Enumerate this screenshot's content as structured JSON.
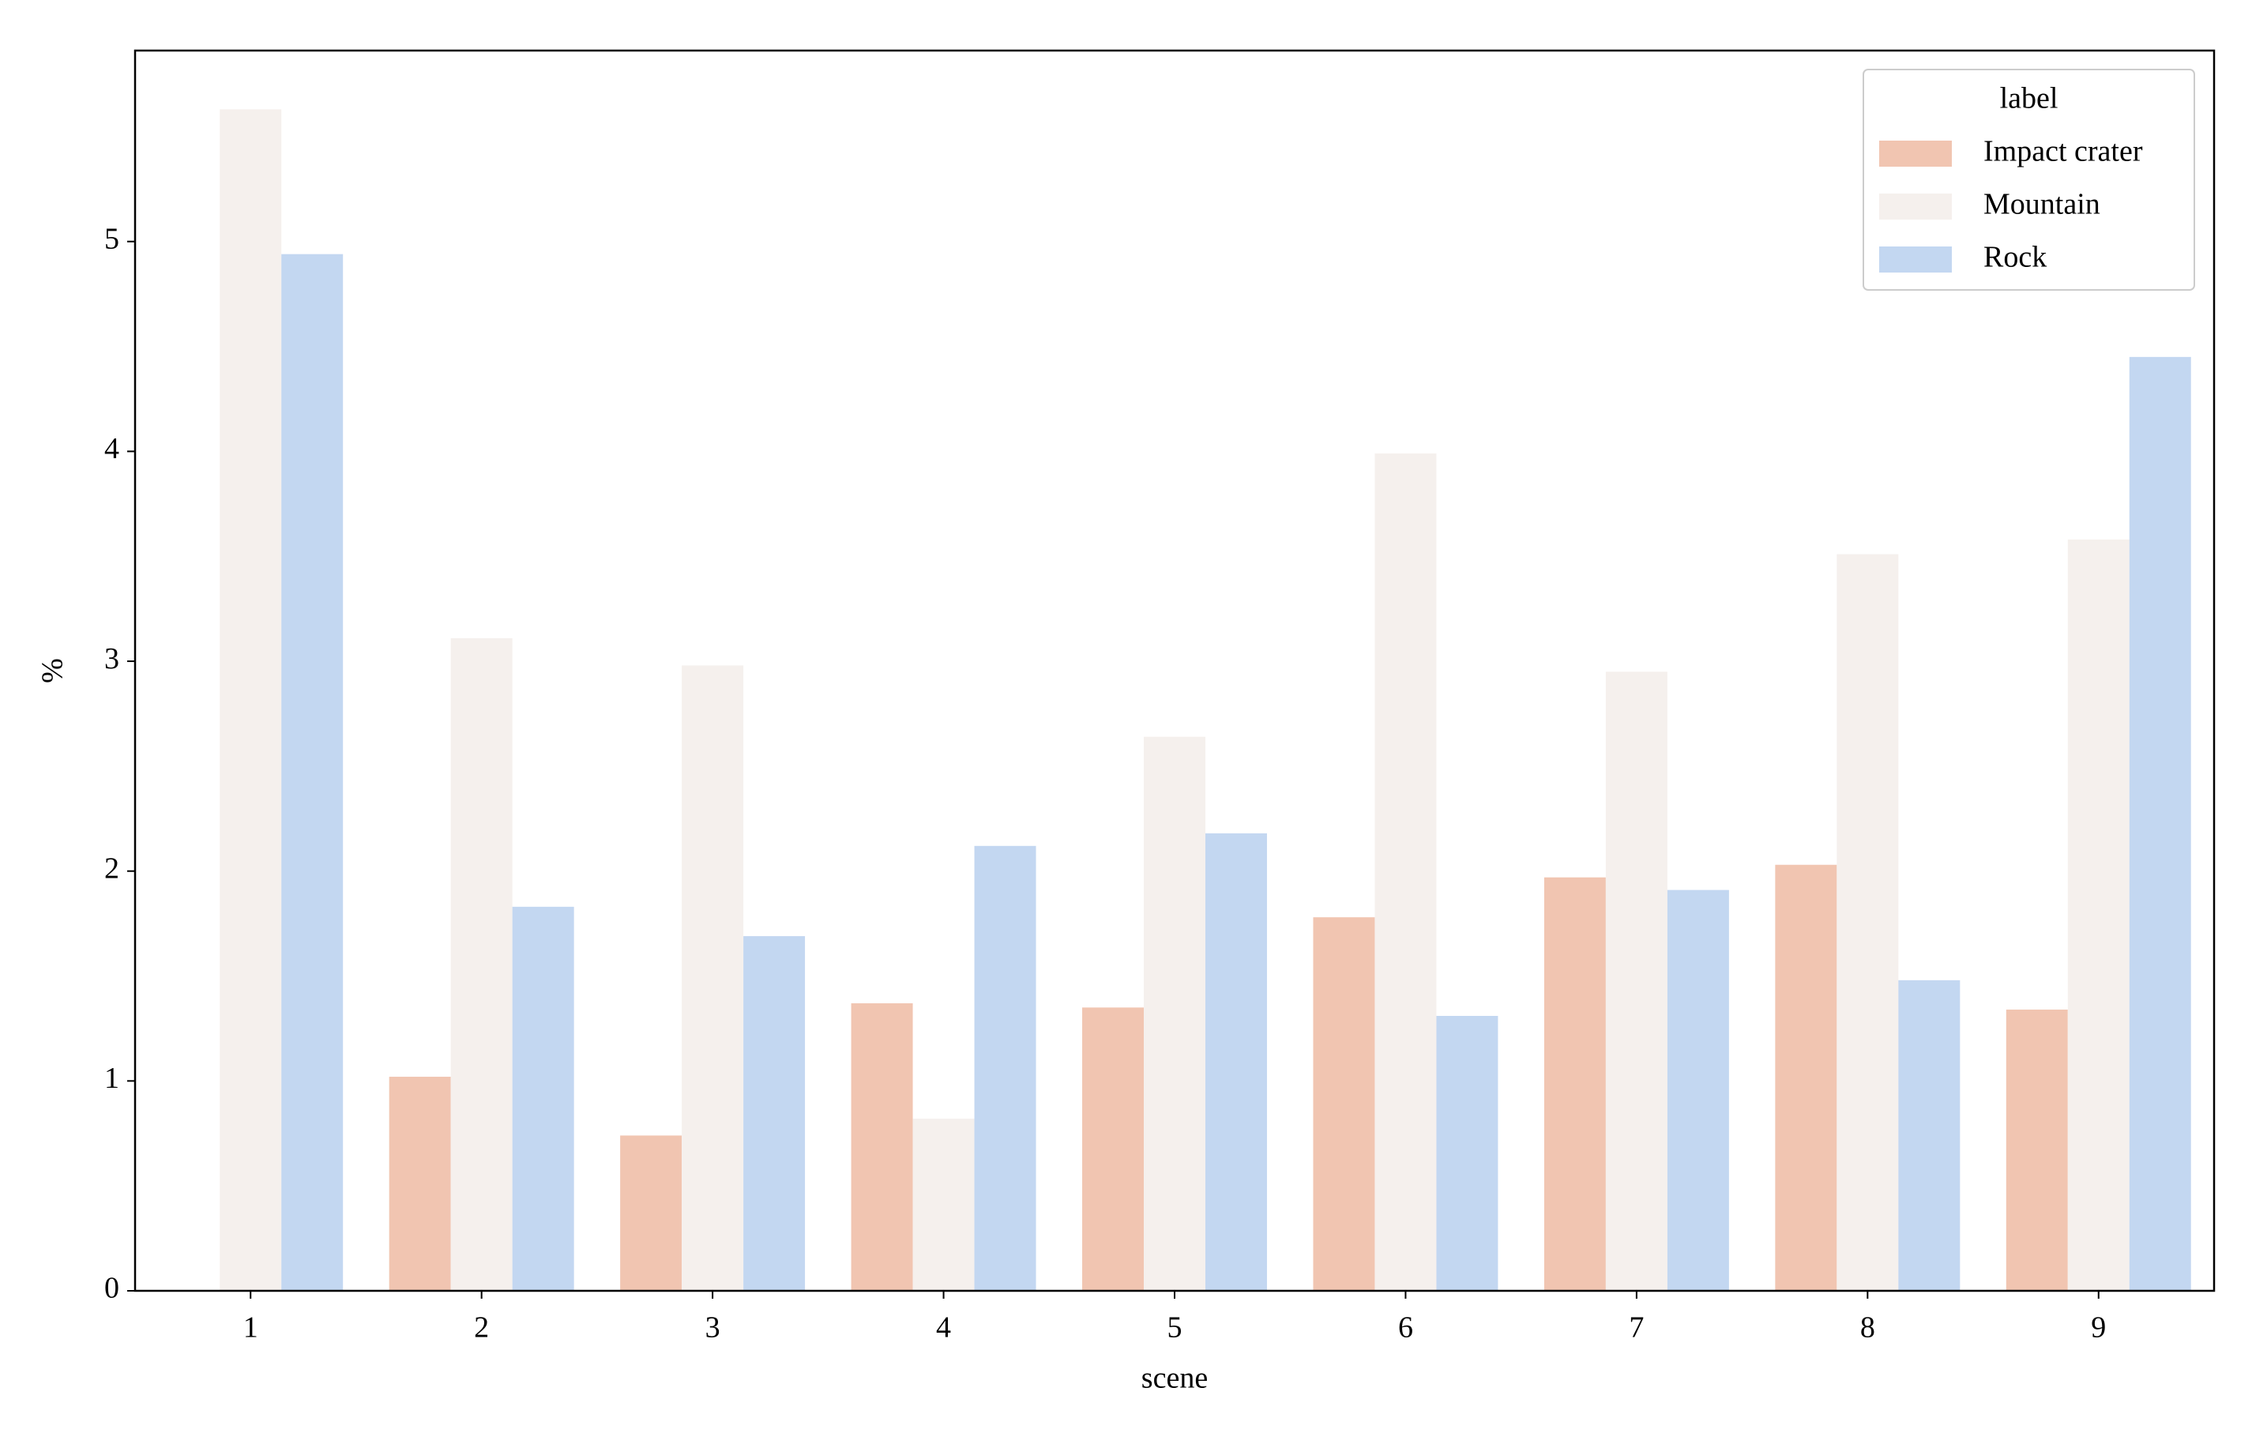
{
  "chart_data": {
    "type": "bar",
    "x_label": "scene",
    "y_label": "%",
    "categories": [
      "1",
      "2",
      "3",
      "4",
      "5",
      "6",
      "7",
      "8",
      "9"
    ],
    "series": [
      {
        "name": "Impact crater",
        "color": "#f1c5b1",
        "values": [
          null,
          1.02,
          0.74,
          1.37,
          1.35,
          1.78,
          1.97,
          2.03,
          1.34
        ]
      },
      {
        "name": "Mountain",
        "color": "#f5f0ed",
        "values": [
          5.63,
          3.11,
          2.98,
          0.82,
          2.64,
          3.99,
          2.95,
          3.51,
          3.58
        ]
      },
      {
        "name": "Rock",
        "color": "#c3d7f1",
        "values": [
          4.94,
          1.83,
          1.69,
          2.12,
          2.18,
          1.31,
          1.91,
          1.48,
          4.45
        ]
      }
    ],
    "legend_title": "label",
    "legend_position": "upper right",
    "ylim": [
      0,
      5.91
    ],
    "yticks": [
      0,
      1,
      2,
      3,
      4,
      5
    ],
    "grid": false
  }
}
